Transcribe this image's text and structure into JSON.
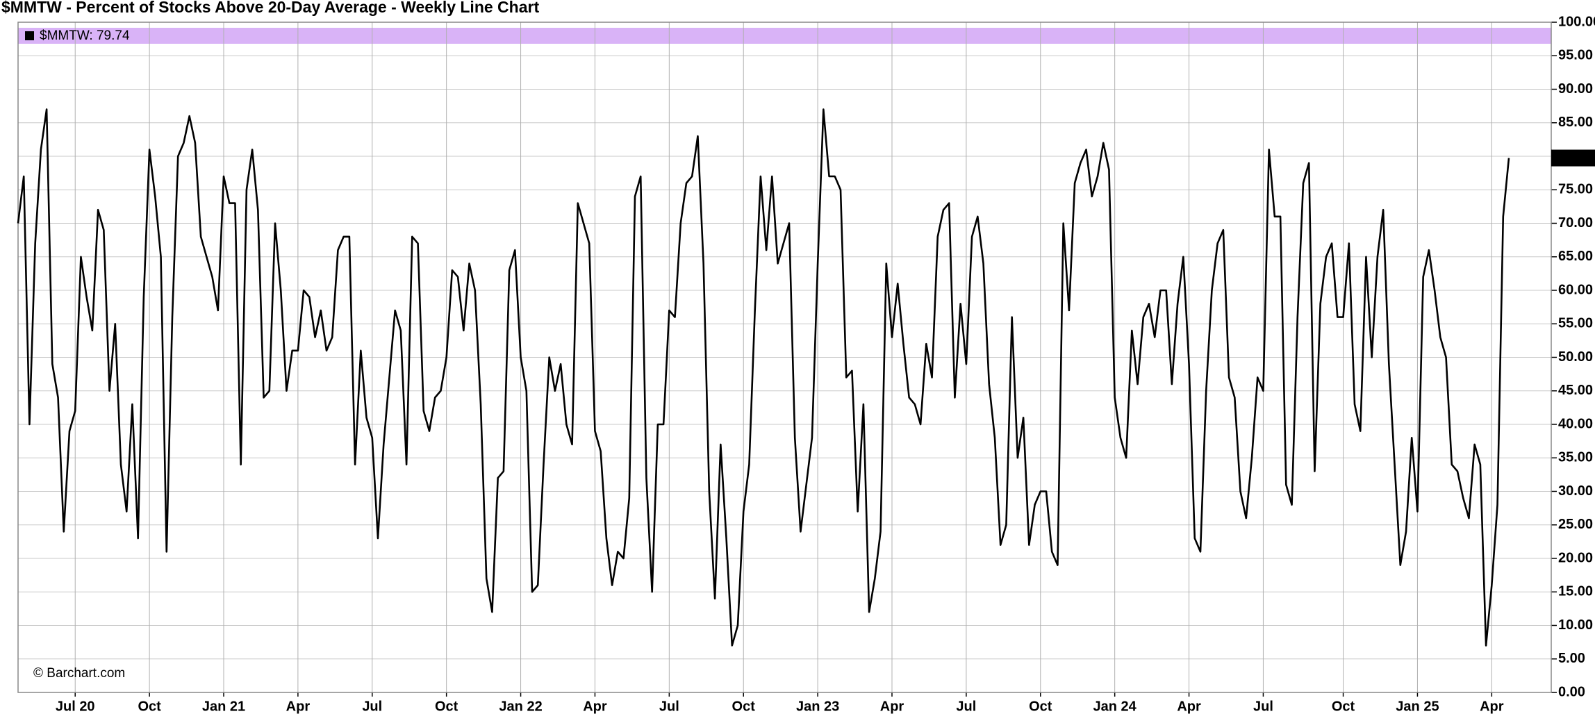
{
  "chart_data": {
    "type": "line",
    "title": "$MMTW - Percent of Stocks Above 20-Day Average - Weekly Line Chart",
    "legend_label": "$MMTW: 79.74",
    "watermark": "© Barchart.com",
    "band_color": "#d9b3f7",
    "grid": true,
    "ylim": [
      0,
      100
    ],
    "yticks": [
      {
        "value": 0,
        "label": "0.00"
      },
      {
        "value": 5,
        "label": "5.00"
      },
      {
        "value": 10,
        "label": "10.00"
      },
      {
        "value": 15,
        "label": "15.00"
      },
      {
        "value": 20,
        "label": "20.00"
      },
      {
        "value": 25,
        "label": "25.00"
      },
      {
        "value": 30,
        "label": "30.00"
      },
      {
        "value": 35,
        "label": "35.00"
      },
      {
        "value": 40,
        "label": "40.00"
      },
      {
        "value": 45,
        "label": "45.00"
      },
      {
        "value": 50,
        "label": "50.00"
      },
      {
        "value": 55,
        "label": "55.00"
      },
      {
        "value": 60,
        "label": "60.00"
      },
      {
        "value": 65,
        "label": "65.00"
      },
      {
        "value": 70,
        "label": "70.00"
      },
      {
        "value": 75,
        "label": "75.00"
      },
      {
        "value": 80,
        "label": "80.00"
      },
      {
        "value": 85,
        "label": "85.00"
      },
      {
        "value": 90,
        "label": "90.00"
      },
      {
        "value": 95,
        "label": "95.00"
      },
      {
        "value": 100,
        "label": "100.00"
      }
    ],
    "categories": [
      null,
      null,
      null,
      null,
      null,
      null,
      null,
      null,
      null,
      null,
      "Jul 20",
      null,
      null,
      null,
      null,
      null,
      null,
      null,
      null,
      null,
      null,
      null,
      null,
      "Oct",
      null,
      null,
      null,
      null,
      null,
      null,
      null,
      null,
      null,
      null,
      null,
      null,
      "Jan 21",
      null,
      null,
      null,
      null,
      null,
      null,
      null,
      null,
      null,
      null,
      null,
      null,
      "Apr",
      null,
      null,
      null,
      null,
      null,
      null,
      null,
      null,
      null,
      null,
      null,
      null,
      "Jul",
      null,
      null,
      null,
      null,
      null,
      null,
      null,
      null,
      null,
      null,
      null,
      null,
      "Oct",
      null,
      null,
      null,
      null,
      null,
      null,
      null,
      null,
      null,
      null,
      null,
      null,
      "Jan 22",
      null,
      null,
      null,
      null,
      null,
      null,
      null,
      null,
      null,
      null,
      null,
      null,
      "Apr",
      null,
      null,
      null,
      null,
      null,
      null,
      null,
      null,
      null,
      null,
      null,
      null,
      "Jul",
      null,
      null,
      null,
      null,
      null,
      null,
      null,
      null,
      null,
      null,
      null,
      null,
      "Oct",
      null,
      null,
      null,
      null,
      null,
      null,
      null,
      null,
      null,
      null,
      null,
      null,
      "Jan 23",
      null,
      null,
      null,
      null,
      null,
      null,
      null,
      null,
      null,
      null,
      null,
      null,
      "Apr",
      null,
      null,
      null,
      null,
      null,
      null,
      null,
      null,
      null,
      null,
      null,
      null,
      "Jul",
      null,
      null,
      null,
      null,
      null,
      null,
      null,
      null,
      null,
      null,
      null,
      null,
      "Oct",
      null,
      null,
      null,
      null,
      null,
      null,
      null,
      null,
      null,
      null,
      null,
      null,
      "Jan 24",
      null,
      null,
      null,
      null,
      null,
      null,
      null,
      null,
      null,
      null,
      null,
      null,
      "Apr",
      null,
      null,
      null,
      null,
      null,
      null,
      null,
      null,
      null,
      null,
      null,
      null,
      "Jul",
      null,
      null,
      null,
      null,
      null,
      null,
      null,
      null,
      null,
      null,
      null,
      null,
      null,
      "Oct",
      null,
      null,
      null,
      null,
      null,
      null,
      null,
      null,
      null,
      null,
      null,
      null,
      "Jan 25",
      null,
      null,
      null,
      null,
      null,
      null,
      null,
      null,
      null,
      null,
      null,
      null,
      "Apr",
      null,
      null,
      null
    ],
    "series": [
      {
        "name": "$MMTW",
        "color": "#000000",
        "values": [
          70,
          77,
          40,
          67,
          81,
          87,
          49,
          44,
          24,
          39,
          42,
          65,
          59,
          54,
          72,
          69,
          45,
          55,
          34,
          27,
          43,
          23,
          59,
          81,
          74,
          65,
          21,
          56,
          80,
          82,
          86,
          82,
          68,
          65,
          62,
          57,
          77,
          73,
          73,
          34,
          75,
          81,
          72,
          44,
          45,
          70,
          60,
          45,
          51,
          51,
          60,
          59,
          53,
          57,
          51,
          53,
          66,
          68,
          68,
          34,
          51,
          41,
          38,
          23,
          37,
          47,
          57,
          54,
          34,
          68,
          67,
          42,
          39,
          44,
          45,
          50,
          63,
          62,
          54,
          64,
          60,
          43,
          17,
          12,
          32,
          33,
          63,
          66,
          50,
          45,
          15,
          16,
          34,
          50,
          45,
          49,
          40,
          37,
          73,
          70,
          67,
          39,
          36,
          23,
          16,
          21,
          20,
          29,
          74,
          77,
          32,
          15,
          40,
          40,
          57,
          56,
          70,
          76,
          77,
          83,
          64,
          30,
          14,
          37,
          23,
          7,
          10,
          27,
          34,
          57,
          77,
          66,
          77,
          64,
          67,
          70,
          38,
          24,
          31,
          38,
          64,
          87,
          77,
          77,
          75,
          47,
          48,
          27,
          43,
          12,
          17,
          24,
          64,
          53,
          61,
          52,
          44,
          43,
          40,
          52,
          47,
          68,
          72,
          73,
          44,
          58,
          49,
          68,
          71,
          64,
          46,
          38,
          22,
          25,
          56,
          35,
          41,
          22,
          28,
          30,
          30,
          21,
          19,
          70,
          57,
          76,
          79,
          81,
          74,
          77,
          82,
          78,
          44,
          38,
          35,
          54,
          46,
          56,
          58,
          53,
          60,
          60,
          46,
          58,
          65,
          49,
          23,
          21,
          45,
          60,
          67,
          69,
          47,
          44,
          30,
          26,
          35,
          47,
          45,
          81,
          71,
          71,
          31,
          28,
          56,
          76,
          79,
          33,
          58,
          65,
          67,
          56,
          56,
          67,
          43,
          39,
          65,
          50,
          65,
          72,
          49,
          34,
          19,
          24,
          38,
          27,
          62,
          66,
          60,
          53,
          50,
          34,
          33,
          29,
          26,
          37,
          34,
          7,
          16,
          28,
          71,
          79.74
        ]
      }
    ]
  }
}
